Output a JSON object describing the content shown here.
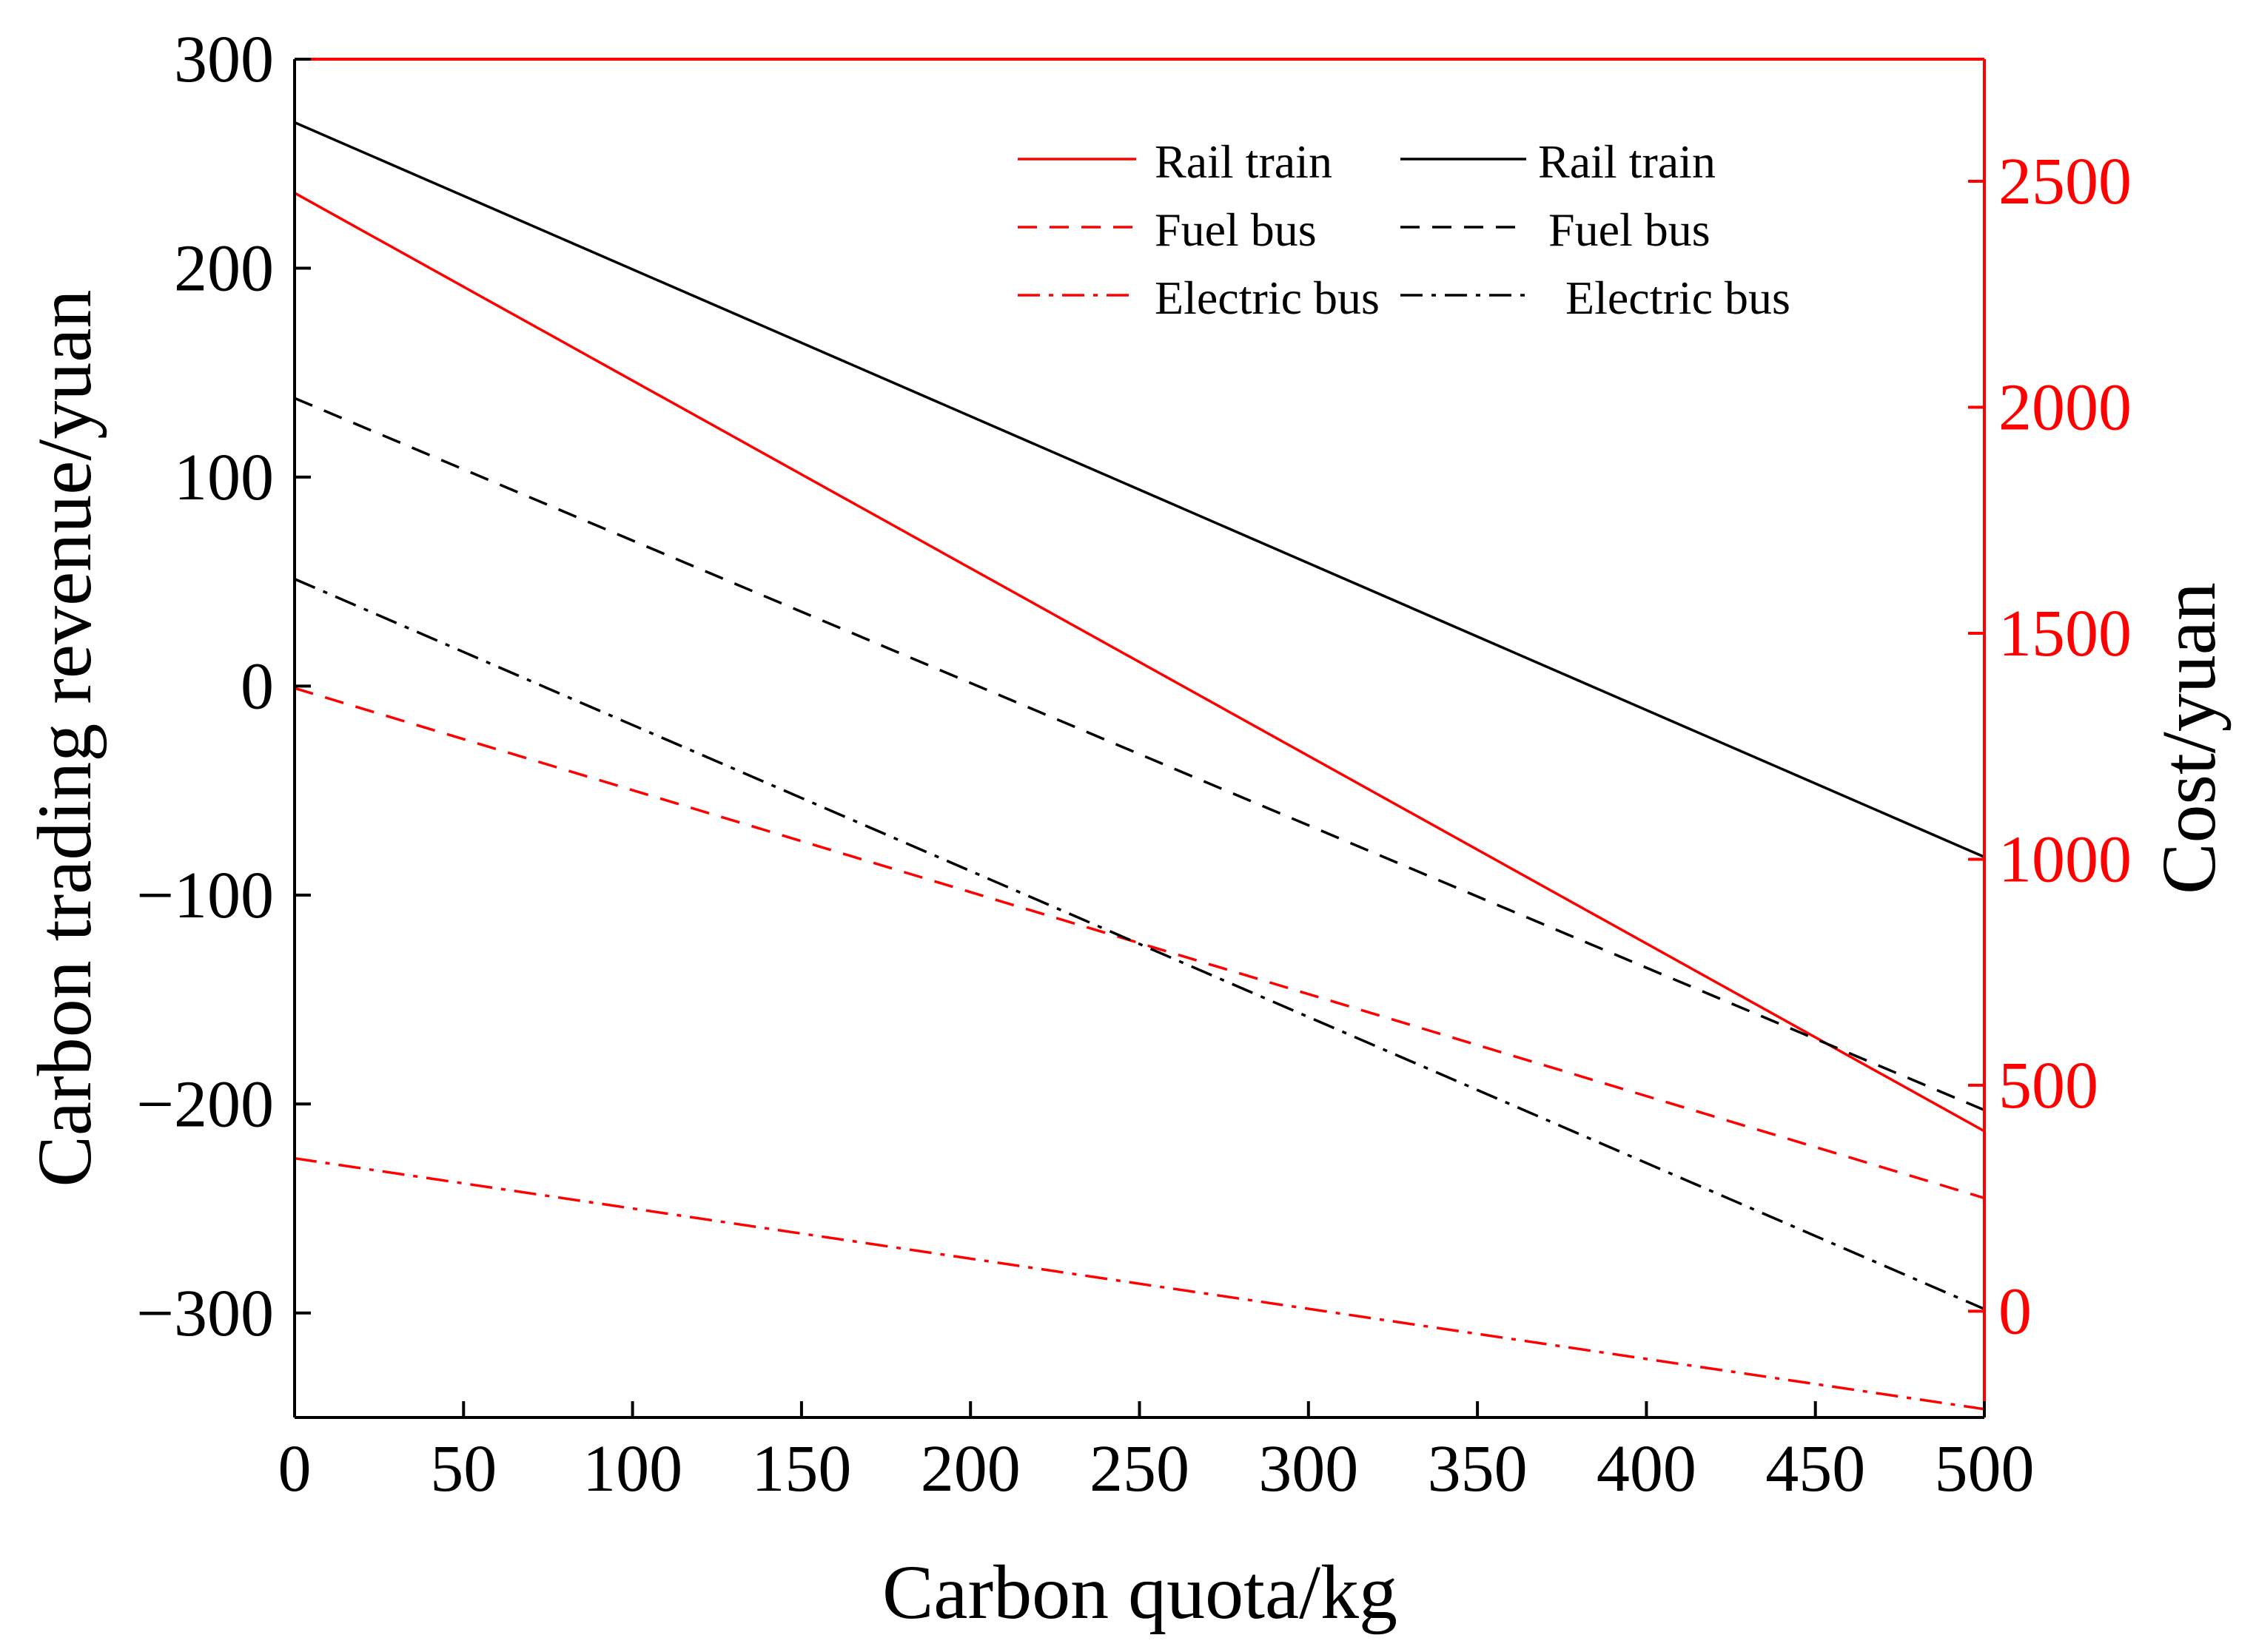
{
  "chart_data": {
    "type": "line",
    "xlabel": "Carbon quota/kg",
    "ylabel_left": "Carbon trading revenue/yuan",
    "ylabel_right": "Cost/yuan",
    "xlim": [
      0,
      500
    ],
    "ylim_left": [
      -350,
      300
    ],
    "ylim_right": [
      -235,
      2770
    ],
    "x_ticks": [
      0,
      50,
      100,
      150,
      200,
      250,
      300,
      350,
      400,
      450,
      500
    ],
    "y_ticks_left": [
      300,
      200,
      100,
      0,
      -100,
      -200,
      -300
    ],
    "y_ticks_left_labels": [
      "300",
      "200",
      "100",
      "0",
      "−100",
      "−200",
      "−300"
    ],
    "y_ticks_right": [
      0,
      500,
      1000,
      1500,
      2000,
      2500
    ],
    "y_ticks_right_labels": [
      "0",
      "500",
      "1000",
      "1500",
      "2000",
      "2500"
    ],
    "grid": false,
    "legend_position": "top-right",
    "colors": {
      "red": "#ff0000",
      "black": "#000000",
      "axis": "#000000"
    },
    "series": [
      {
        "name": "Rail train",
        "axis": "left",
        "color": "#ff0000",
        "dash": "solid",
        "x": [
          0,
          500
        ],
        "values": [
          236,
          -213
        ]
      },
      {
        "name": "Fuel bus",
        "axis": "left",
        "color": "#ff0000",
        "dash": "dashed",
        "x": [
          0,
          500
        ],
        "values": [
          -1,
          -245
        ]
      },
      {
        "name": "Electric bus",
        "axis": "left",
        "color": "#ff0000",
        "dash": "dashdot",
        "x": [
          0,
          500
        ],
        "values": [
          -226,
          -346
        ]
      },
      {
        "name": "Rail train",
        "axis": "right",
        "color": "#000000",
        "dash": "solid",
        "x": [
          0,
          500
        ],
        "values": [
          2630,
          1005
        ]
      },
      {
        "name": "Fuel bus",
        "axis": "right",
        "color": "#000000",
        "dash": "dashed",
        "x": [
          0,
          500
        ],
        "values": [
          2020,
          445
        ]
      },
      {
        "name": "Electric bus",
        "axis": "right",
        "color": "#000000",
        "dash": "dashdot",
        "x": [
          0,
          500
        ],
        "values": [
          1620,
          5
        ]
      }
    ]
  }
}
